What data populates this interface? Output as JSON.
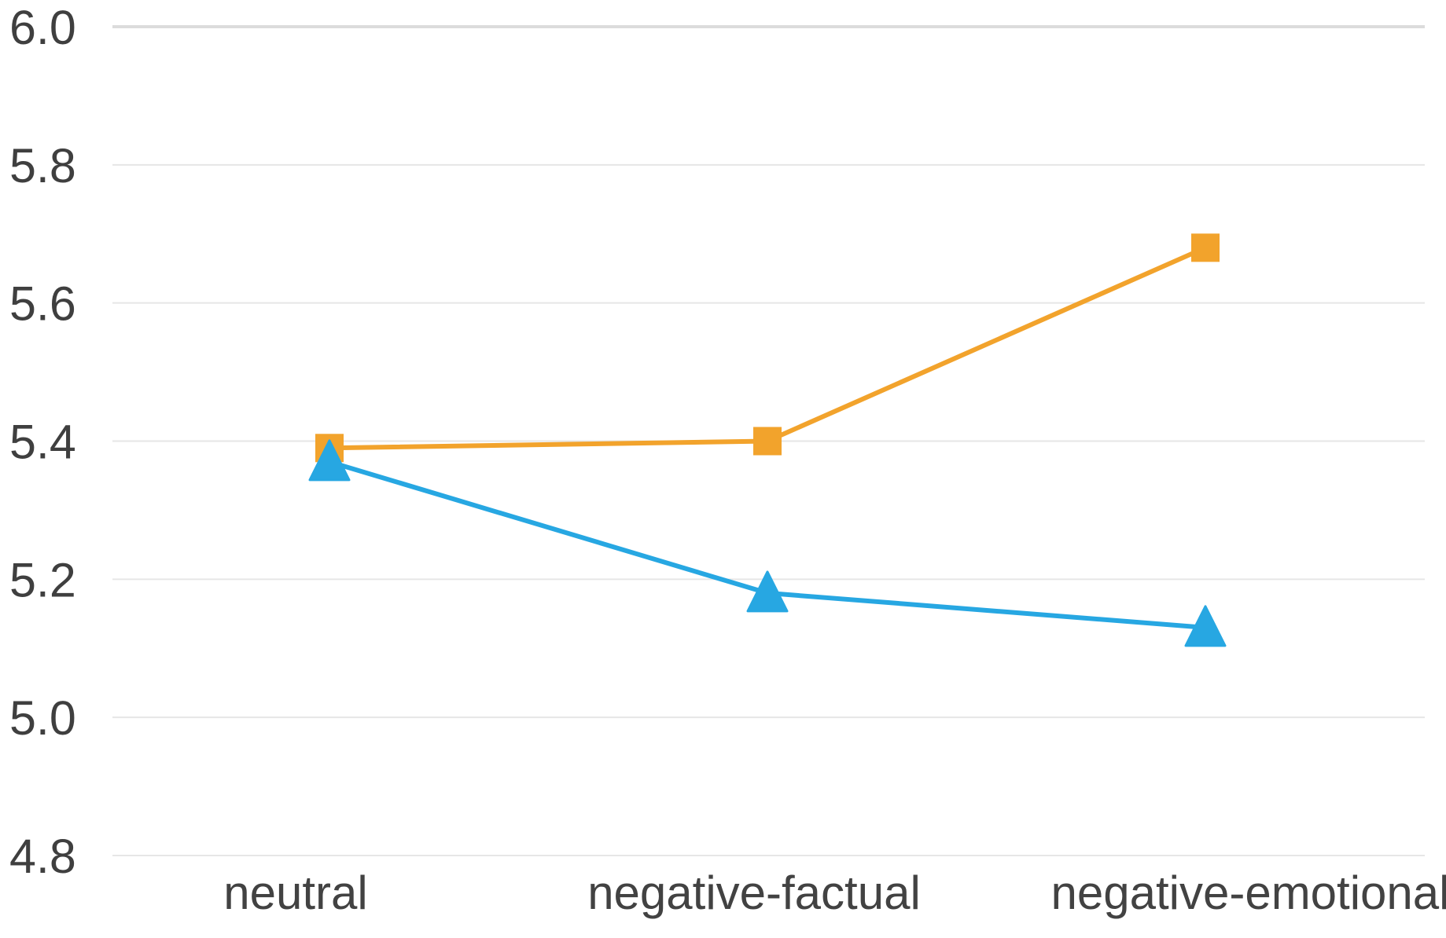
{
  "chart_data": {
    "type": "line",
    "title": "",
    "xlabel": "",
    "ylabel": "",
    "categories": [
      "neutral",
      "negative-factual",
      "negative-emotional"
    ],
    "series": [
      {
        "name": "orange-square-series",
        "marker": "square",
        "color": "#F2A32C",
        "values": [
          5.39,
          5.4,
          5.68
        ]
      },
      {
        "name": "blue-triangle-series",
        "marker": "triangle",
        "color": "#27A7E2",
        "values": [
          5.37,
          5.18,
          5.13
        ]
      }
    ],
    "ytick_labels": [
      "6.0",
      "5.8",
      "5.6",
      "5.4",
      "5.2",
      "5.0",
      "4.8"
    ],
    "ytick_values": [
      6.0,
      5.8,
      5.6,
      5.4,
      5.2,
      5.0,
      4.8
    ],
    "ylim": [
      4.8,
      6.0
    ],
    "legend": "none",
    "grid": "horizontal",
    "grid_color": "#e6e6e6",
    "grid_top_color": "#dcdcdc",
    "text_color": "#3f3f3f",
    "background_color": "#ffffff"
  }
}
